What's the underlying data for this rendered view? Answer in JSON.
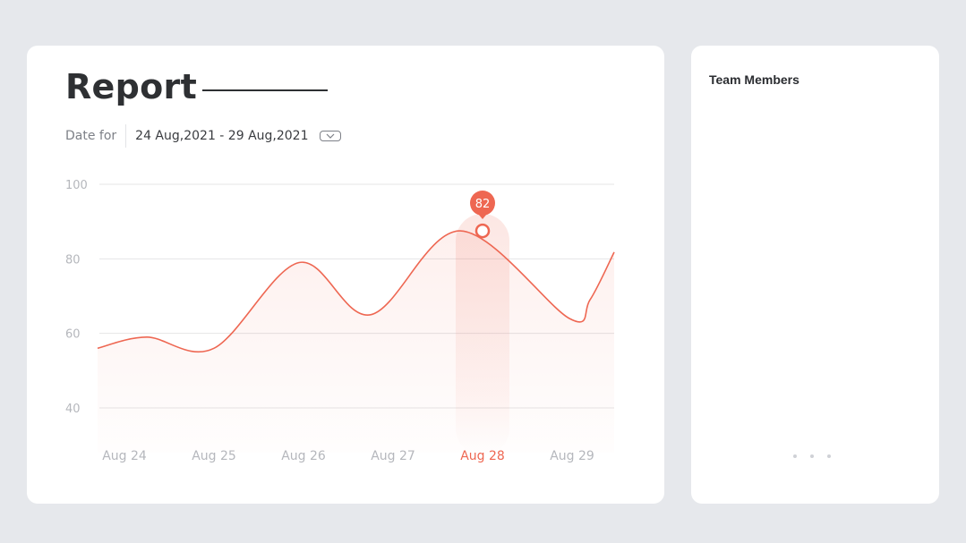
{
  "report": {
    "title": "Report",
    "date_label": "Date for",
    "date_range": "24 Aug,2021 - 29 Aug,2021",
    "dropdown_icon": "chevron-down-icon"
  },
  "team": {
    "title": "Team Members",
    "more_icon": "more-dots-icon"
  },
  "colors": {
    "accent": "#ee6752",
    "text_dark": "#2e3033",
    "grid": "#e4e4e6",
    "tick": "#b5b7bc"
  },
  "chart_data": {
    "type": "line",
    "categories": [
      "Aug 24",
      "Aug 25",
      "Aug 26",
      "Aug 27",
      "Aug 28",
      "Aug 29"
    ],
    "ylim": [
      30,
      100
    ],
    "yticks": [
      40,
      60,
      80,
      100
    ],
    "grid": true,
    "highlight_index": 4,
    "highlight_label": "82",
    "series": [
      {
        "x": [
          23.7,
          24.25,
          25.0,
          25.95,
          26.75,
          27.75,
          28.97,
          29.2,
          29.47
        ],
        "values": [
          56,
          59,
          56,
          79,
          65,
          87.5,
          64,
          69,
          81.8
        ]
      }
    ]
  }
}
